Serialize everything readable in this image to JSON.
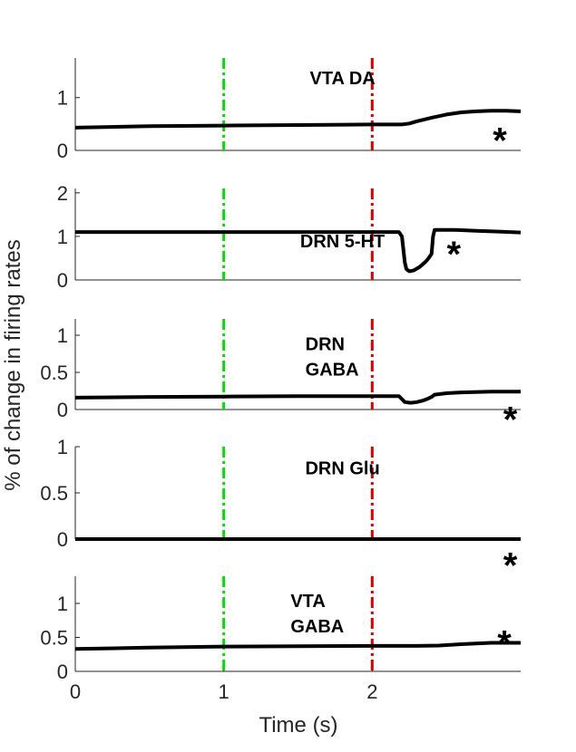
{
  "chart_data": {
    "type": "line",
    "xlabel": "Time (s)",
    "ylabel": "% of change in firing rates",
    "xlim": [
      0,
      3
    ],
    "xticks": [
      0,
      1,
      2
    ],
    "xtick_labels": [
      "0",
      "1",
      "2"
    ],
    "vlines": [
      {
        "x": 1,
        "color": "#00e000",
        "style": "dash-dot"
      },
      {
        "x": 2,
        "color": "#e00000",
        "style": "dash-dot"
      }
    ],
    "colors": {
      "line": "#000000",
      "axis": "#262626"
    },
    "panels": [
      {
        "label_lines": [
          "VTA DA"
        ],
        "label_x": 1.8,
        "label_y": 1.25,
        "annotation": "*",
        "annotation_x": 2.86,
        "annotation_y": 0.2,
        "ylim": [
          0,
          1.75
        ],
        "yticks": [
          0,
          1
        ],
        "ytick_labels": [
          "0",
          "1"
        ],
        "series": [
          {
            "x": [
              0,
              0.5,
              1.0,
              1.5,
              2.0,
              2.2,
              2.25,
              2.3,
              2.4,
              2.5,
              2.6,
              2.7,
              2.8,
              2.9,
              3.0
            ],
            "y": [
              0.43,
              0.46,
              0.47,
              0.48,
              0.49,
              0.49,
              0.51,
              0.55,
              0.62,
              0.68,
              0.72,
              0.74,
              0.75,
              0.75,
              0.74
            ]
          }
        ]
      },
      {
        "label_lines": [
          "DRN 5-HT"
        ],
        "label_x": 1.8,
        "label_y": 0.75,
        "annotation": "*",
        "annotation_x": 2.55,
        "annotation_y": 0.6,
        "ylim": [
          0,
          2.1
        ],
        "yticks": [
          0,
          1,
          2
        ],
        "ytick_labels": [
          "0",
          "1",
          "2"
        ],
        "series": [
          {
            "x": [
              0,
              0.5,
              1.0,
              1.5,
              2.0,
              2.18,
              2.2,
              2.21,
              2.22,
              2.23,
              2.25,
              2.28,
              2.32,
              2.36,
              2.38,
              2.4,
              2.41,
              2.42,
              2.45,
              2.55,
              2.7,
              2.85,
              3.0
            ],
            "y": [
              1.1,
              1.1,
              1.1,
              1.1,
              1.1,
              1.1,
              1.0,
              0.7,
              0.4,
              0.25,
              0.2,
              0.22,
              0.3,
              0.42,
              0.5,
              0.6,
              1.0,
              1.15,
              1.15,
              1.15,
              1.13,
              1.11,
              1.09
            ]
          }
        ]
      },
      {
        "label_lines": [
          "DRN",
          "GABA"
        ],
        "label_x": 1.55,
        "label_y": 0.8,
        "annotation": "*",
        "annotation_x": 2.93,
        "annotation_y": -0.13,
        "ylim": [
          0,
          1.22
        ],
        "yticks": [
          0,
          0.5,
          1
        ],
        "ytick_labels": [
          "0",
          "0.5",
          "1"
        ],
        "series": [
          {
            "x": [
              0,
              0.5,
              1.0,
              1.5,
              2.0,
              2.18,
              2.2,
              2.22,
              2.26,
              2.3,
              2.34,
              2.38,
              2.4,
              2.42,
              2.5,
              2.6,
              2.8,
              3.0
            ],
            "y": [
              0.16,
              0.17,
              0.175,
              0.18,
              0.18,
              0.18,
              0.14,
              0.1,
              0.09,
              0.1,
              0.12,
              0.15,
              0.17,
              0.2,
              0.22,
              0.23,
              0.24,
              0.24
            ]
          }
        ]
      },
      {
        "label_lines": [
          "DRN Glu"
        ],
        "label_x": 1.8,
        "label_y": 0.7,
        "annotation": "*",
        "annotation_x": 2.93,
        "annotation_y": -0.28,
        "ylim": [
          0,
          1.0
        ],
        "yticks": [
          0,
          0.5,
          1
        ],
        "ytick_labels": [
          "0",
          "0.5",
          "1"
        ],
        "series": [
          {
            "x": [
              0,
              1.0,
              2.0,
              3.0
            ],
            "y": [
              0,
              0,
              0,
              0
            ]
          }
        ]
      },
      {
        "label_lines": [
          "VTA",
          "GABA"
        ],
        "label_x": 1.45,
        "label_y": 0.95,
        "annotation": "*",
        "annotation_x": 2.89,
        "annotation_y": 0.42,
        "ylim": [
          0,
          1.4
        ],
        "yticks": [
          0,
          0.5,
          1
        ],
        "ytick_labels": [
          "0",
          "0.5",
          "1"
        ],
        "series": [
          {
            "x": [
              0,
              0.5,
              1.0,
              1.5,
              2.0,
              2.3,
              2.45,
              2.6,
              2.8,
              3.0
            ],
            "y": [
              0.33,
              0.35,
              0.365,
              0.37,
              0.375,
              0.375,
              0.38,
              0.4,
              0.42,
              0.42
            ]
          }
        ]
      }
    ]
  }
}
